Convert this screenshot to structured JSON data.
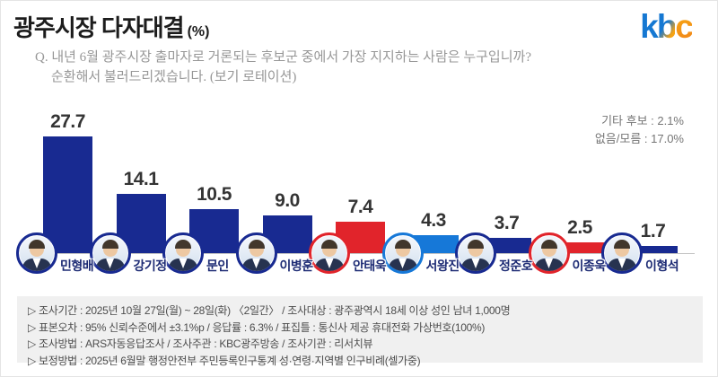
{
  "header": {
    "title": "광주시장 다자대결",
    "unit": "(%)",
    "logo": {
      "k": "k",
      "b": "b",
      "c": "c"
    }
  },
  "question": {
    "line1": "Q. 내년 6월 광주시장 출마자로 거론되는 후보군 중에서 가장 지지하는 사람은 누구입니까?",
    "line2": "순환해서 불러드리겠습니다. (보기 로테이션)"
  },
  "side_stats": {
    "others": "기타 후보 : 2.1%",
    "none_dontknow": "없음/모름 : 17.0%"
  },
  "chart_data": {
    "type": "bar",
    "title": "광주시장 다자대결 (%)",
    "categories": [
      "민형배",
      "강기정",
      "문인",
      "이병훈",
      "안태욱",
      "서왕진",
      "정준호",
      "이종욱",
      "이형석"
    ],
    "values": [
      27.7,
      14.1,
      10.5,
      9.0,
      7.4,
      4.3,
      3.7,
      2.5,
      1.7
    ],
    "candidates": [
      {
        "name": "민형배",
        "value": 27.7,
        "label": "27.7",
        "color": "#182a91"
      },
      {
        "name": "강기정",
        "value": 14.1,
        "label": "14.1",
        "color": "#182a91"
      },
      {
        "name": "문인",
        "value": 10.5,
        "label": "10.5",
        "color": "#182a91"
      },
      {
        "name": "이병훈",
        "value": 9.0,
        "label": "9.0",
        "color": "#182a91"
      },
      {
        "name": "안태욱",
        "value": 7.4,
        "label": "7.4",
        "color": "#e1242b"
      },
      {
        "name": "서왕진",
        "value": 4.3,
        "label": "4.3",
        "color": "#1678d8"
      },
      {
        "name": "정준호",
        "value": 3.7,
        "label": "3.7",
        "color": "#182a91"
      },
      {
        "name": "이종욱",
        "value": 2.5,
        "label": "2.5",
        "color": "#e1242b"
      },
      {
        "name": "이형석",
        "value": 1.7,
        "label": "1.7",
        "color": "#182a91"
      }
    ],
    "others": {
      "label": "기타 후보",
      "value": 2.1
    },
    "none_dontknow": {
      "label": "없음/모름",
      "value": 17.0
    },
    "colors": {
      "navy": "#182a91",
      "red": "#e1242b",
      "blue": "#1678d8"
    },
    "ylim": [
      0,
      30
    ],
    "grid": false,
    "legend": "none",
    "value_labels": "above-bars"
  },
  "footnotes": [
    "▷ 조사기간 : 2025년 10월 27일(월) ~ 28일(화) 〈2일간〉 / 조사대상 : 광주광역시 18세 이상 성인 남녀 1,000명",
    "▷ 표본오차 : 95% 신뢰수준에서 ±3.1%p / 응답률 : 6.3% / 표집틀 : 통신사 제공 휴대전화 가상번호(100%)",
    "▷ 조사방법 : ARS자동응답조사 / 조사주관 : KBC광주방송 / 조사기관 : 리서치뷰",
    "▷ 보정방법 : 2025년 6월말 행정안전부 주민등록인구통계 성·연령·지역별 인구비례(셀가중)"
  ]
}
